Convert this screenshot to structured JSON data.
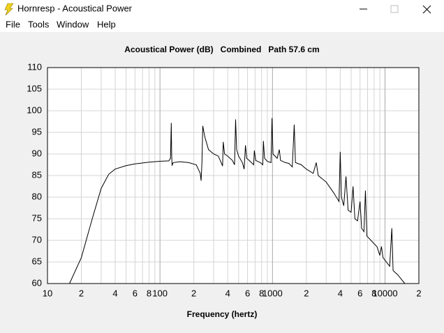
{
  "window": {
    "title": "Hornresp - Acoustical Power"
  },
  "menu": [
    "File",
    "Tools",
    "Window",
    "Help"
  ],
  "chart_data": {
    "type": "line",
    "title": "Acoustical Power (dB)   Combined   Path 57.6 cm",
    "xlabel": "Frequency (hertz)",
    "log_x": true,
    "grid": true,
    "xlim": [
      10,
      20000
    ],
    "ylim": [
      60,
      110
    ],
    "xticks": [
      10,
      {
        "value": 20,
        "label": "2"
      },
      {
        "value": 40,
        "label": "4"
      },
      {
        "value": 60,
        "label": "6"
      },
      {
        "value": 80,
        "label": "8"
      },
      100,
      {
        "value": 200,
        "label": "2"
      },
      {
        "value": 400,
        "label": "4"
      },
      {
        "value": 600,
        "label": "6"
      },
      {
        "value": 800,
        "label": "8"
      },
      1000,
      {
        "value": 2000,
        "label": "2"
      },
      {
        "value": 4000,
        "label": "4"
      },
      {
        "value": 6000,
        "label": "6"
      },
      {
        "value": 8000,
        "label": "8"
      },
      10000,
      {
        "value": 20000,
        "label": "2"
      }
    ],
    "xminor": [
      30,
      50,
      70,
      90,
      300,
      500,
      700,
      900,
      3000,
      5000,
      7000,
      9000
    ],
    "yticks": [
      60,
      65,
      70,
      75,
      80,
      85,
      90,
      95,
      100,
      105,
      110
    ],
    "x": [
      15.7,
      20,
      25,
      30,
      35,
      40,
      50,
      60,
      80,
      100,
      120,
      124,
      126,
      127,
      128,
      131,
      150,
      180,
      210,
      228,
      232,
      236,
      240,
      250,
      270,
      300,
      330,
      350,
      360,
      365,
      375,
      400,
      440,
      460,
      470,
      480,
      500,
      540,
      560,
      575,
      590,
      620,
      650,
      680,
      690,
      710,
      780,
      820,
      830,
      850,
      900,
      970,
      990,
      1010,
      1100,
      1150,
      1180,
      1300,
      1400,
      1500,
      1560,
      1600,
      1800,
      2000,
      2300,
      2450,
      2550,
      3000,
      3500,
      3900,
      4000,
      4100,
      4300,
      4500,
      4700,
      5000,
      5200,
      5400,
      5700,
      6000,
      6200,
      6500,
      6700,
      6900,
      7500,
      8500,
      9000,
      9300,
      9600,
      11000,
      11500,
      11800,
      13000,
      15000
    ],
    "series": [
      {
        "color": "#000000",
        "values": [
          60,
          66,
          75,
          82,
          85.3,
          86.5,
          87.3,
          87.7,
          88.1,
          88.3,
          88.4,
          89,
          97.2,
          90,
          87.3,
          88,
          88.2,
          88,
          87.5,
          85.5,
          83.8,
          88,
          96.5,
          94,
          91,
          90,
          89.5,
          88,
          87.2,
          92.8,
          90,
          89.5,
          88.5,
          87.5,
          98,
          91,
          89.5,
          88,
          86.5,
          92,
          89,
          88.5,
          88,
          87.5,
          90.8,
          88.5,
          88,
          87.5,
          93,
          89,
          88.3,
          88,
          98.3,
          90,
          89,
          91,
          88.5,
          88,
          87.8,
          87,
          96.8,
          88,
          87.5,
          86.5,
          85.5,
          88,
          85,
          83.5,
          81,
          79,
          90.5,
          80,
          78,
          84.8,
          77,
          76.5,
          82.5,
          75,
          74.5,
          79,
          72.8,
          72,
          81.5,
          71,
          70,
          68.5,
          66.5,
          68.6,
          66,
          64,
          72.8,
          63,
          62,
          60
        ]
      }
    ]
  }
}
